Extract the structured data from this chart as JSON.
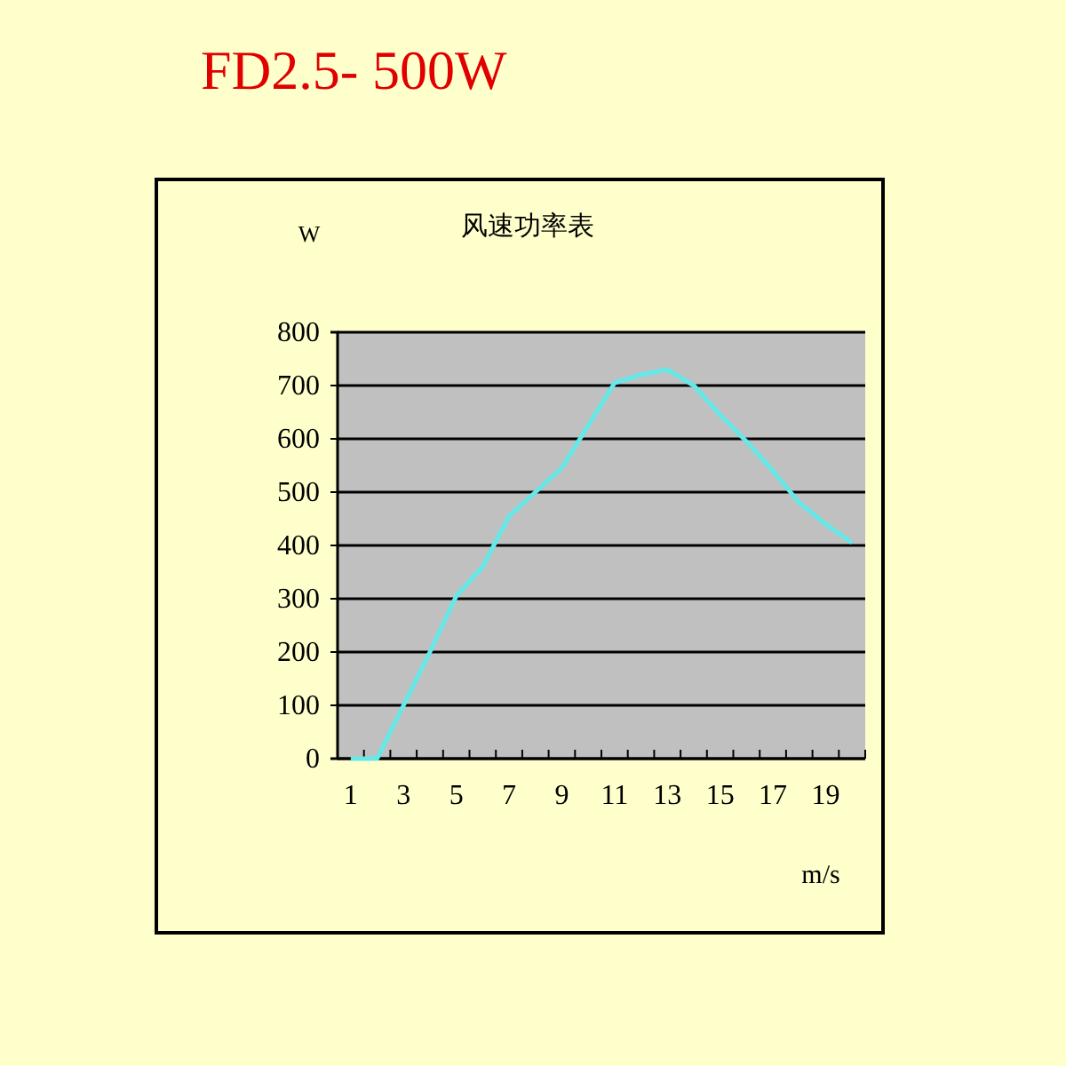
{
  "chart_data": {
    "type": "line",
    "title": "FD2.5- 500W",
    "subtitle": "风速功率表",
    "ylabel": "W",
    "xlabel": "m/s",
    "x": [
      1,
      2,
      3,
      4,
      5,
      6,
      7,
      8,
      9,
      10,
      11,
      12,
      13,
      14,
      15,
      16,
      17,
      18,
      19,
      20
    ],
    "series": [
      {
        "color": "#66e8e8",
        "values": [
          0,
          0,
          100,
          200,
          305,
          360,
          455,
          500,
          545,
          625,
          705,
          720,
          730,
          700,
          645,
          595,
          540,
          480,
          440,
          405
        ]
      }
    ],
    "xlim": [
      0.5,
      20.5
    ],
    "xticks": [
      1,
      {
        "value": 1.5,
        "label": null
      },
      {
        "value": 2.5,
        "label": null
      },
      3,
      {
        "value": 3.5,
        "label": null
      },
      {
        "value": 4.5,
        "label": null
      },
      5,
      {
        "value": 5.5,
        "label": null
      },
      {
        "value": 6.5,
        "label": null
      },
      7,
      {
        "value": 7.5,
        "label": null
      },
      {
        "value": 8.5,
        "label": null
      },
      9,
      {
        "value": 9.5,
        "label": null
      },
      {
        "value": 10.5,
        "label": null
      },
      11,
      {
        "value": 11.5,
        "label": null
      },
      {
        "value": 12.5,
        "label": null
      },
      13,
      {
        "value": 13.5,
        "label": null
      },
      {
        "value": 14.5,
        "label": null
      },
      15,
      {
        "value": 15.5,
        "label": null
      },
      {
        "value": 16.5,
        "label": null
      },
      17,
      {
        "value": 17.5,
        "label": null
      },
      {
        "value": 18.5,
        "label": null
      },
      19,
      {
        "value": 19.5,
        "label": null
      },
      {
        "value": 20.5,
        "label": null
      }
    ],
    "ylim": [
      0,
      800
    ],
    "yticks": [
      0,
      100,
      200,
      300,
      400,
      500,
      600,
      700,
      800
    ],
    "grid": "y",
    "marker": "none",
    "line_style": "solid"
  }
}
